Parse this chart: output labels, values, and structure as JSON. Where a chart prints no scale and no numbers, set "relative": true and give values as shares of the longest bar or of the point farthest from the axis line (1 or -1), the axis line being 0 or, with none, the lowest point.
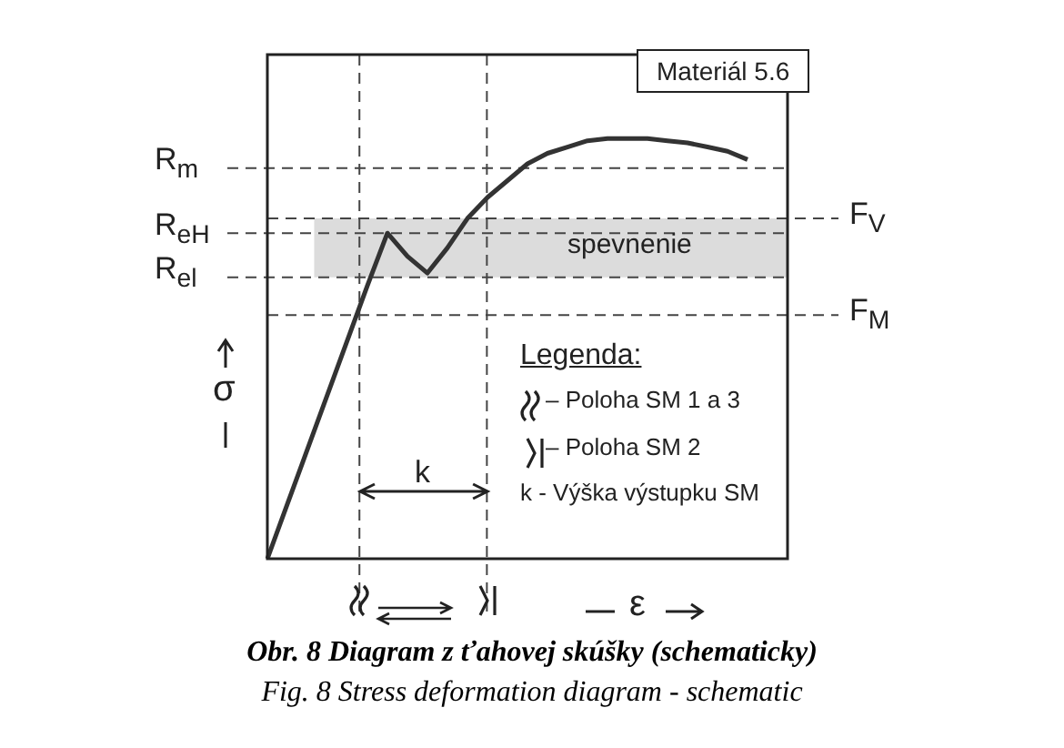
{
  "chart_data": {
    "type": "line",
    "relative": true,
    "title": "Obr. 8  Diagram z ťahovej skúšky (schematicky)",
    "subtitle": "Fig. 8 Stress deformation diagram - schematic",
    "xlabel": "ε",
    "ylabel": "σ",
    "categories": [
      null,
      null,
      null,
      null,
      null,
      null,
      null,
      null,
      null,
      null,
      null,
      null,
      null,
      null,
      null,
      null,
      null,
      null,
      null,
      null,
      null,
      null,
      null,
      null,
      null,
      null,
      null
    ],
    "series": [
      {
        "color": "#333333",
        "values": [
          0,
          0.13,
          0.26,
          0.39,
          0.52,
          0.65,
          0.775,
          0.72,
          0.68,
          0.74,
          0.81,
          0.86,
          0.9,
          0.94,
          0.965,
          0.98,
          0.995,
          1,
          1,
          1,
          0.995,
          0.99,
          0.98,
          0.97,
          0.95,
          null,
          null
        ]
      }
    ],
    "marker": "none",
    "line_style": "solid",
    "ref_lines": [
      {
        "axis": "y",
        "value": 0.93,
        "label": "R$_{m}$",
        "line_style": "dashed"
      },
      {
        "axis": "y",
        "value": 0.775,
        "label": "R$_{eH}$",
        "line_style": "dashed"
      },
      {
        "axis": "y",
        "value": 0.67,
        "label": "R$_{el}$",
        "line_style": "dashed"
      },
      {
        "axis": "y",
        "value": 0.81,
        "label": "F$_{V}$",
        "line_style": "dashed"
      },
      {
        "axis": "y",
        "value": 0.58,
        "label": "F$_{M}$",
        "line_style": "dashed"
      }
    ],
    "bands": [
      {
        "axis": "y",
        "from": 0.67,
        "to": 0.81,
        "label": "spevnenie",
        "color": "#dcdcdc"
      }
    ],
    "annotations": [
      "Materiál 5.6",
      "Legenda:",
      "–  Poloha SM 1 a 3",
      "–  Poloha SM 2",
      "k  -  Výška výstupku SM",
      "k"
    ]
  }
}
